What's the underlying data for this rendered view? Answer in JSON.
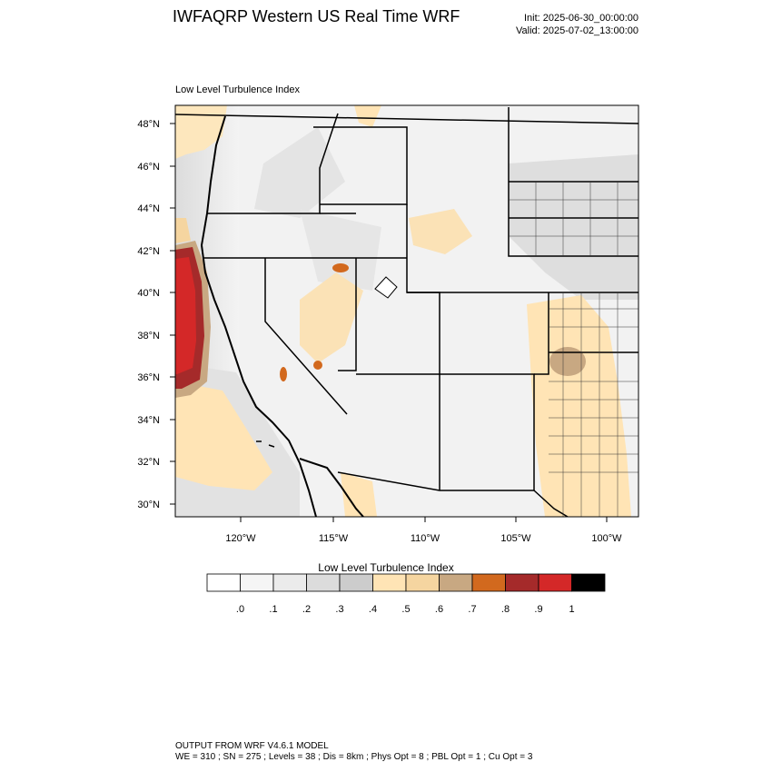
{
  "header": {
    "title": "IWFAQRP Western US Real Time WRF",
    "init": "Init: 2025-06-30_00:00:00",
    "valid": "Valid: 2025-07-02_13:00:00"
  },
  "map": {
    "subtitle": "Low Level Turbulence Index",
    "lat_labels": [
      "48°N",
      "46°N",
      "44°N",
      "42°N",
      "40°N",
      "38°N",
      "36°N",
      "34°N",
      "32°N",
      "30°N"
    ],
    "lon_labels": [
      "120°W",
      "115°W",
      "110°W",
      "105°W",
      "100°W"
    ]
  },
  "legend": {
    "title": "Low Level Turbulence Index",
    "tick_labels": [
      ".0",
      ".1",
      ".2",
      ".3",
      ".4",
      ".5",
      ".6",
      ".7",
      ".8",
      ".9",
      "1"
    ],
    "colors": [
      "#ffffff",
      "#f5f5f5",
      "#ebebeb",
      "#dcdcdc",
      "#cccccc",
      "#ffe4b5",
      "#f5d5a0",
      "#c8a882",
      "#d2691e",
      "#a52a2a",
      "#d42828",
      "#000000"
    ]
  },
  "footer": {
    "line1": "OUTPUT FROM WRF V4.6.1 MODEL",
    "line2": "WE = 310 ; SN = 275 ; Levels = 38 ; Dis = 8km ; Phys Opt = 8 ; PBL Opt = 1 ; Cu Opt = 3"
  }
}
